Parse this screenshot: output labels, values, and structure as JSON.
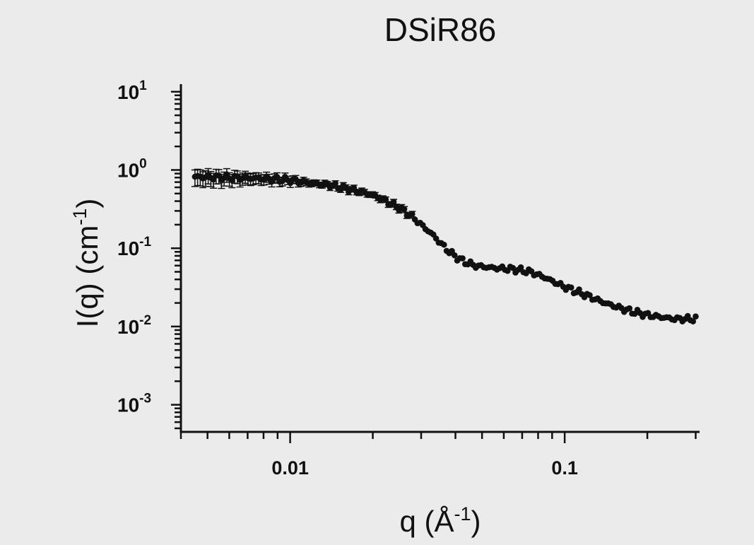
{
  "chart_data": {
    "type": "scatter",
    "title": "DSiR86",
    "xlabel_base": "q (Å",
    "xlabel_exp": "-1",
    "xlabel_close": ")",
    "ylabel_base": "I(q) (cm",
    "ylabel_exp": "-1",
    "ylabel_close": ")",
    "x_scale": "log",
    "y_scale": "log",
    "xlim": [
      0.004,
      0.31
    ],
    "ylim": [
      0.00045,
      12
    ],
    "grid": false,
    "legend": "none",
    "marker_color": "#111111",
    "x_ticks": [
      {
        "value": 0.01,
        "label": "0.01"
      },
      {
        "value": 0.1,
        "label": "0.1"
      }
    ],
    "y_ticks": [
      {
        "value": 10,
        "base": "10",
        "exp": "1"
      },
      {
        "value": 1,
        "base": "10",
        "exp": "0"
      },
      {
        "value": 0.1,
        "base": "10",
        "exp": "-1"
      },
      {
        "value": 0.01,
        "base": "10",
        "exp": "-2"
      },
      {
        "value": 0.001,
        "base": "10",
        "exp": "-3"
      }
    ],
    "anchors": [
      [
        0.0045,
        0.82
      ],
      [
        0.006,
        0.8
      ],
      [
        0.008,
        0.78
      ],
      [
        0.01,
        0.74
      ],
      [
        0.012,
        0.68
      ],
      [
        0.014,
        0.64
      ],
      [
        0.016,
        0.58
      ],
      [
        0.018,
        0.53
      ],
      [
        0.02,
        0.48
      ],
      [
        0.022,
        0.41
      ],
      [
        0.025,
        0.33
      ],
      [
        0.028,
        0.25
      ],
      [
        0.03,
        0.2
      ],
      [
        0.033,
        0.15
      ],
      [
        0.035,
        0.12
      ],
      [
        0.038,
        0.09
      ],
      [
        0.042,
        0.07
      ],
      [
        0.047,
        0.06
      ],
      [
        0.055,
        0.056
      ],
      [
        0.065,
        0.054
      ],
      [
        0.075,
        0.05
      ],
      [
        0.085,
        0.042
      ],
      [
        0.1,
        0.032
      ],
      [
        0.12,
        0.025
      ],
      [
        0.14,
        0.02
      ],
      [
        0.17,
        0.016
      ],
      [
        0.2,
        0.014
      ],
      [
        0.25,
        0.0125
      ],
      [
        0.3,
        0.0125
      ]
    ],
    "n_points": 190,
    "error_bars": {
      "x_max": 0.028,
      "rel_low": 0.25,
      "rel_low_min": 0.08,
      "rel_high": 0.22,
      "rel_high_min": 0.08
    }
  }
}
